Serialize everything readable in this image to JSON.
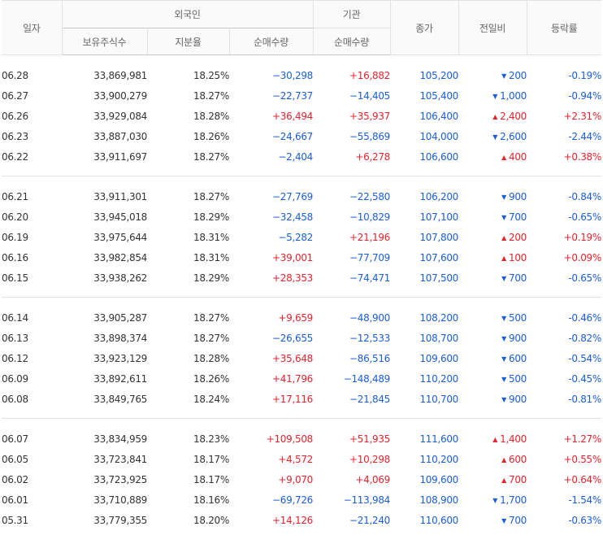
{
  "headers": {
    "date": "일자",
    "foreign": "외국인",
    "institution": "기관",
    "holdings": "보유주식수",
    "ratio": "지분율",
    "foreign_net": "순매수량",
    "inst_net": "순매수량",
    "close": "종가",
    "change": "전일비",
    "rate": "등락률"
  },
  "colors": {
    "up": "#e8232c",
    "down": "#1a5ed8"
  },
  "groups": [
    [
      {
        "date": "06.28",
        "holdings": "33,869,981",
        "ratio": "18.25%",
        "foreign_net": "−30,298",
        "inst_net": "+16,882",
        "close": "105,200",
        "dir": "down",
        "change": "200",
        "rate": "-0.19%"
      },
      {
        "date": "06.27",
        "holdings": "33,900,279",
        "ratio": "18.27%",
        "foreign_net": "−22,737",
        "inst_net": "−14,405",
        "close": "105,400",
        "dir": "down",
        "change": "1,000",
        "rate": "-0.94%"
      },
      {
        "date": "06.26",
        "holdings": "33,929,084",
        "ratio": "18.28%",
        "foreign_net": "+36,494",
        "inst_net": "+35,937",
        "close": "106,400",
        "dir": "up",
        "change": "2,400",
        "rate": "+2.31%"
      },
      {
        "date": "06.23",
        "holdings": "33,887,030",
        "ratio": "18.26%",
        "foreign_net": "−24,667",
        "inst_net": "−55,869",
        "close": "104,000",
        "dir": "down",
        "change": "2,600",
        "rate": "-2.44%"
      },
      {
        "date": "06.22",
        "holdings": "33,911,697",
        "ratio": "18.27%",
        "foreign_net": "−2,404",
        "inst_net": "+6,278",
        "close": "106,600",
        "dir": "up",
        "change": "400",
        "rate": "+0.38%"
      }
    ],
    [
      {
        "date": "06.21",
        "holdings": "33,911,301",
        "ratio": "18.27%",
        "foreign_net": "−27,769",
        "inst_net": "−22,580",
        "close": "106,200",
        "dir": "down",
        "change": "900",
        "rate": "-0.84%"
      },
      {
        "date": "06.20",
        "holdings": "33,945,018",
        "ratio": "18.29%",
        "foreign_net": "−32,458",
        "inst_net": "−10,829",
        "close": "107,100",
        "dir": "down",
        "change": "700",
        "rate": "-0.65%"
      },
      {
        "date": "06.19",
        "holdings": "33,975,644",
        "ratio": "18.31%",
        "foreign_net": "−5,282",
        "inst_net": "+21,196",
        "close": "107,800",
        "dir": "up",
        "change": "200",
        "rate": "+0.19%"
      },
      {
        "date": "06.16",
        "holdings": "33,982,854",
        "ratio": "18.31%",
        "foreign_net": "+39,001",
        "inst_net": "−77,709",
        "close": "107,600",
        "dir": "up",
        "change": "100",
        "rate": "+0.09%"
      },
      {
        "date": "06.15",
        "holdings": "33,938,262",
        "ratio": "18.29%",
        "foreign_net": "+28,353",
        "inst_net": "−74,471",
        "close": "107,500",
        "dir": "down",
        "change": "700",
        "rate": "-0.65%"
      }
    ],
    [
      {
        "date": "06.14",
        "holdings": "33,905,287",
        "ratio": "18.27%",
        "foreign_net": "+9,659",
        "inst_net": "−48,900",
        "close": "108,200",
        "dir": "down",
        "change": "500",
        "rate": "-0.46%"
      },
      {
        "date": "06.13",
        "holdings": "33,898,374",
        "ratio": "18.27%",
        "foreign_net": "−26,655",
        "inst_net": "−12,533",
        "close": "108,700",
        "dir": "down",
        "change": "900",
        "rate": "-0.82%"
      },
      {
        "date": "06.12",
        "holdings": "33,923,129",
        "ratio": "18.28%",
        "foreign_net": "+35,648",
        "inst_net": "−86,516",
        "close": "109,600",
        "dir": "down",
        "change": "600",
        "rate": "-0.54%"
      },
      {
        "date": "06.09",
        "holdings": "33,892,611",
        "ratio": "18.26%",
        "foreign_net": "+41,796",
        "inst_net": "−148,489",
        "close": "110,200",
        "dir": "down",
        "change": "500",
        "rate": "-0.45%"
      },
      {
        "date": "06.08",
        "holdings": "33,849,765",
        "ratio": "18.24%",
        "foreign_net": "+17,116",
        "inst_net": "−21,845",
        "close": "110,700",
        "dir": "down",
        "change": "900",
        "rate": "-0.81%"
      }
    ],
    [
      {
        "date": "06.07",
        "holdings": "33,834,959",
        "ratio": "18.23%",
        "foreign_net": "+109,508",
        "inst_net": "+51,935",
        "close": "111,600",
        "dir": "up",
        "change": "1,400",
        "rate": "+1.27%"
      },
      {
        "date": "06.05",
        "holdings": "33,723,841",
        "ratio": "18.17%",
        "foreign_net": "+4,572",
        "inst_net": "+10,298",
        "close": "110,200",
        "dir": "up",
        "change": "600",
        "rate": "+0.55%"
      },
      {
        "date": "06.02",
        "holdings": "33,723,925",
        "ratio": "18.17%",
        "foreign_net": "+9,070",
        "inst_net": "+4,069",
        "close": "109,600",
        "dir": "up",
        "change": "700",
        "rate": "+0.64%"
      },
      {
        "date": "06.01",
        "holdings": "33,710,889",
        "ratio": "18.16%",
        "foreign_net": "−69,726",
        "inst_net": "−113,984",
        "close": "108,900",
        "dir": "down",
        "change": "1,700",
        "rate": "-1.54%"
      },
      {
        "date": "05.31",
        "holdings": "33,779,355",
        "ratio": "18.20%",
        "foreign_net": "+14,126",
        "inst_net": "−21,240",
        "close": "110,600",
        "dir": "down",
        "change": "700",
        "rate": "-0.63%"
      }
    ]
  ]
}
